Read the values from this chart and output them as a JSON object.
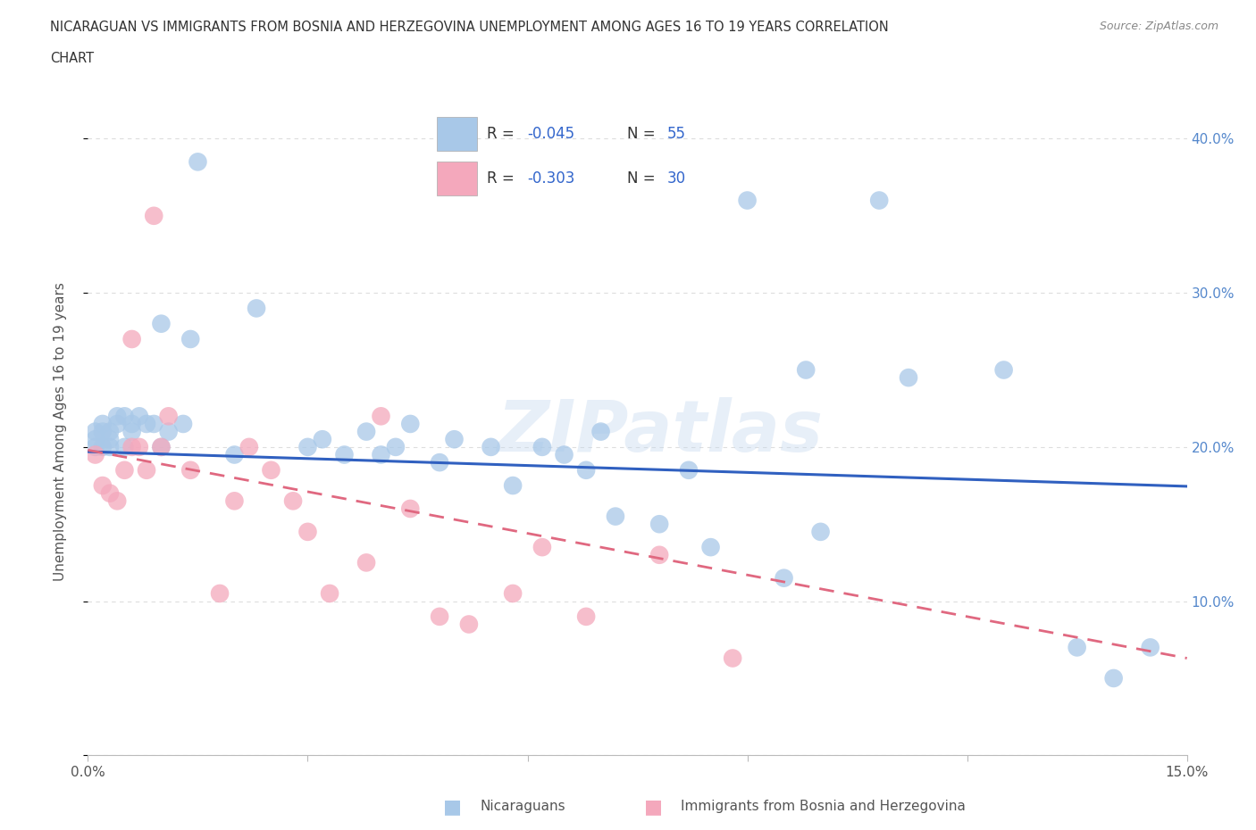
{
  "title_line1": "NICARAGUAN VS IMMIGRANTS FROM BOSNIA AND HERZEGOVINA UNEMPLOYMENT AMONG AGES 16 TO 19 YEARS CORRELATION",
  "title_line2": "CHART",
  "source": "Source: ZipAtlas.com",
  "ylabel": "Unemployment Among Ages 16 to 19 years",
  "xlim": [
    0.0,
    0.15
  ],
  "ylim": [
    0.0,
    0.42
  ],
  "blue_label": "Nicaraguans",
  "pink_label": "Immigrants from Bosnia and Herzegovina",
  "R_blue": -0.045,
  "N_blue": 55,
  "R_pink": -0.303,
  "N_pink": 30,
  "blue_scatter_color": "#A8C8E8",
  "pink_scatter_color": "#F4A8BC",
  "blue_line_color": "#3060C0",
  "pink_line_color": "#E06880",
  "legend_text_color": "#3366CC",
  "background_color": "#FFFFFF",
  "grid_color": "#DDDDDD",
  "blue_x": [
    0.001,
    0.001,
    0.001,
    0.002,
    0.002,
    0.002,
    0.003,
    0.003,
    0.003,
    0.004,
    0.004,
    0.005,
    0.005,
    0.006,
    0.006,
    0.007,
    0.008,
    0.009,
    0.01,
    0.01,
    0.011,
    0.013,
    0.014,
    0.015,
    0.02,
    0.023,
    0.03,
    0.032,
    0.035,
    0.038,
    0.04,
    0.042,
    0.044,
    0.048,
    0.05,
    0.055,
    0.058,
    0.062,
    0.065,
    0.068,
    0.07,
    0.072,
    0.078,
    0.082,
    0.085,
    0.09,
    0.095,
    0.098,
    0.1,
    0.108,
    0.112,
    0.125,
    0.135,
    0.14,
    0.145
  ],
  "blue_y": [
    0.2,
    0.205,
    0.21,
    0.2,
    0.215,
    0.21,
    0.2,
    0.21,
    0.205,
    0.215,
    0.22,
    0.2,
    0.22,
    0.21,
    0.215,
    0.22,
    0.215,
    0.215,
    0.2,
    0.28,
    0.21,
    0.215,
    0.27,
    0.385,
    0.195,
    0.29,
    0.2,
    0.205,
    0.195,
    0.21,
    0.195,
    0.2,
    0.215,
    0.19,
    0.205,
    0.2,
    0.175,
    0.2,
    0.195,
    0.185,
    0.21,
    0.155,
    0.15,
    0.185,
    0.135,
    0.36,
    0.115,
    0.25,
    0.145,
    0.36,
    0.245,
    0.25,
    0.07,
    0.05,
    0.07
  ],
  "pink_x": [
    0.001,
    0.002,
    0.003,
    0.004,
    0.005,
    0.006,
    0.006,
    0.007,
    0.008,
    0.009,
    0.01,
    0.011,
    0.014,
    0.018,
    0.02,
    0.022,
    0.025,
    0.028,
    0.03,
    0.033,
    0.038,
    0.04,
    0.044,
    0.048,
    0.052,
    0.058,
    0.062,
    0.068,
    0.078,
    0.088
  ],
  "pink_y": [
    0.195,
    0.175,
    0.17,
    0.165,
    0.185,
    0.27,
    0.2,
    0.2,
    0.185,
    0.35,
    0.2,
    0.22,
    0.185,
    0.105,
    0.165,
    0.2,
    0.185,
    0.165,
    0.145,
    0.105,
    0.125,
    0.22,
    0.16,
    0.09,
    0.085,
    0.105,
    0.135,
    0.09,
    0.13,
    0.063
  ]
}
